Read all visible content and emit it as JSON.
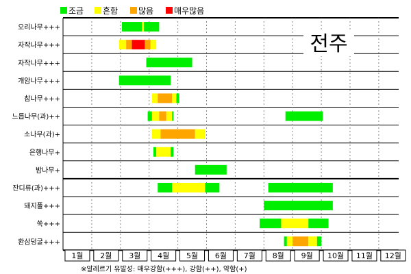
{
  "chart_data": {
    "type": "gantt",
    "region_label": "전주",
    "footnote": "※알레르기 유발성: 매우강함(+++), 강함(++), 약함(+)",
    "months": [
      "1월",
      "2월",
      "3월",
      "4월",
      "5월",
      "6월",
      "7월",
      "8월",
      "9월",
      "10월",
      "11월",
      "12월"
    ],
    "legend": [
      {
        "key": "low",
        "label": "조금",
        "color": "#00ee00"
      },
      {
        "key": "common",
        "label": "흔함",
        "color": "#ffff00"
      },
      {
        "key": "many",
        "label": "많음",
        "color": "#ffa500"
      },
      {
        "key": "very_many",
        "label": "매우많음",
        "color": "#ff0000"
      }
    ],
    "rows": [
      {
        "name": "오리나무+++",
        "segments": [
          {
            "start": 3.05,
            "end": 3.75,
            "level": "low"
          },
          {
            "start": 3.75,
            "end": 3.82,
            "level": "common"
          },
          {
            "start": 3.82,
            "end": 4.35,
            "level": "low"
          }
        ]
      },
      {
        "name": "자작나무+++",
        "segments": [
          {
            "start": 2.95,
            "end": 3.2,
            "level": "common"
          },
          {
            "start": 3.2,
            "end": 3.4,
            "level": "many"
          },
          {
            "start": 3.4,
            "end": 3.85,
            "level": "very_many"
          },
          {
            "start": 3.85,
            "end": 4.05,
            "level": "many"
          },
          {
            "start": 4.05,
            "end": 4.25,
            "level": "common"
          }
        ]
      },
      {
        "name": "자작나무+++",
        "segments": [
          {
            "start": 3.9,
            "end": 5.5,
            "level": "low"
          }
        ]
      },
      {
        "name": "개암나무+++",
        "segments": [
          {
            "start": 2.95,
            "end": 4.75,
            "level": "low"
          }
        ]
      },
      {
        "name": "참나무+++",
        "segments": [
          {
            "start": 4.1,
            "end": 4.3,
            "level": "common"
          },
          {
            "start": 4.3,
            "end": 4.8,
            "level": "many"
          },
          {
            "start": 4.8,
            "end": 4.95,
            "level": "common"
          },
          {
            "start": 4.95,
            "end": 5.05,
            "level": "low"
          }
        ]
      },
      {
        "name": "느릅나무(과)++",
        "segments": [
          {
            "start": 3.95,
            "end": 4.1,
            "level": "low"
          },
          {
            "start": 4.1,
            "end": 4.35,
            "level": "common"
          },
          {
            "start": 4.35,
            "end": 4.6,
            "level": "many"
          },
          {
            "start": 4.6,
            "end": 4.8,
            "level": "common"
          },
          {
            "start": 4.8,
            "end": 4.85,
            "level": "low"
          },
          {
            "start": 8.75,
            "end": 10.05,
            "level": "low"
          }
        ]
      },
      {
        "name": "소나무(과)+",
        "segments": [
          {
            "start": 4.1,
            "end": 4.4,
            "level": "common"
          },
          {
            "start": 4.4,
            "end": 5.6,
            "level": "many"
          },
          {
            "start": 5.6,
            "end": 5.95,
            "level": "common"
          }
        ]
      },
      {
        "name": "은행나무+",
        "segments": [
          {
            "start": 4.15,
            "end": 4.25,
            "level": "low"
          },
          {
            "start": 4.25,
            "end": 4.75,
            "level": "common"
          },
          {
            "start": 4.75,
            "end": 4.85,
            "level": "low"
          }
        ]
      },
      {
        "name": "밤나무+",
        "segments": [
          {
            "start": 5.6,
            "end": 6.7,
            "level": "low"
          }
        ]
      },
      {
        "name": "잔디류(과)+++",
        "segments": [
          {
            "start": 4.3,
            "end": 4.8,
            "level": "low"
          },
          {
            "start": 4.8,
            "end": 5.95,
            "level": "common"
          },
          {
            "start": 5.95,
            "end": 6.45,
            "level": "low"
          },
          {
            "start": 8.15,
            "end": 10.4,
            "level": "low"
          }
        ]
      },
      {
        "name": "돼지풀+++",
        "segments": [
          {
            "start": 8.0,
            "end": 10.4,
            "level": "low"
          }
        ]
      },
      {
        "name": "쑥+++",
        "segments": [
          {
            "start": 7.85,
            "end": 8.6,
            "level": "low"
          },
          {
            "start": 8.6,
            "end": 9.55,
            "level": "common"
          },
          {
            "start": 9.55,
            "end": 10.25,
            "level": "low"
          }
        ]
      },
      {
        "name": "환삼덩굴+++",
        "segments": [
          {
            "start": 8.7,
            "end": 8.8,
            "level": "low"
          },
          {
            "start": 8.8,
            "end": 9.0,
            "level": "common"
          },
          {
            "start": 9.0,
            "end": 9.55,
            "level": "many"
          },
          {
            "start": 9.55,
            "end": 9.85,
            "level": "common"
          },
          {
            "start": 9.85,
            "end": 10.0,
            "level": "low"
          }
        ]
      }
    ]
  }
}
